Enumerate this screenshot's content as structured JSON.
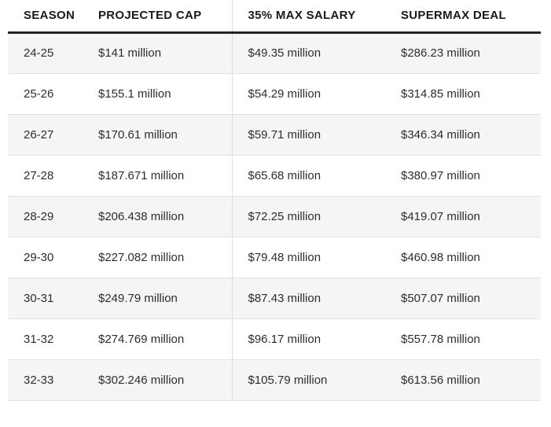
{
  "chart_data": {
    "type": "table",
    "columns": [
      "SEASON",
      "PROJECTED CAP",
      "35% MAX SALARY",
      "SUPERMAX DEAL"
    ],
    "column_keys": [
      "season",
      "projected-cap",
      "max-salary-35pct",
      "supermax-deal"
    ],
    "rows": [
      [
        "24-25",
        "$141 million",
        "$49.35 million",
        "$286.23 million"
      ],
      [
        "25-26",
        "$155.1 million",
        "$54.29 million",
        "$314.85 million"
      ],
      [
        "26-27",
        "$170.61 million",
        "$59.71 million",
        "$346.34 million"
      ],
      [
        "27-28",
        "$187.671 million",
        "$65.68 million",
        "$380.97 million"
      ],
      [
        "28-29",
        "$206.438 million",
        "$72.25 million",
        "$419.07 million"
      ],
      [
        "29-30",
        "$227.082 million",
        "$79.48 million",
        "$460.98 million"
      ],
      [
        "30-31",
        "$249.79 million",
        "$87.43 million",
        "$507.07 million"
      ],
      [
        "31-32",
        "$274.769 million",
        "$96.17 million",
        "$557.78 million"
      ],
      [
        "32-33",
        "$302.246 million",
        "$105.79 million",
        "$613.56 million"
      ]
    ],
    "layout": {
      "striped_rows": true,
      "first_data_row_shaded": true,
      "column_divider_before_column": "35% MAX SALARY",
      "grid": "horizontal-separators"
    }
  },
  "colors": {
    "header_text": "#1a1a1a",
    "body_text": "#2d2d2d",
    "header_rule": "#222222",
    "stripe_bg": "#f5f5f5",
    "row_separator": "#e2e2e2",
    "column_divider": "#dcdcdc",
    "page_bg": "#ffffff"
  }
}
